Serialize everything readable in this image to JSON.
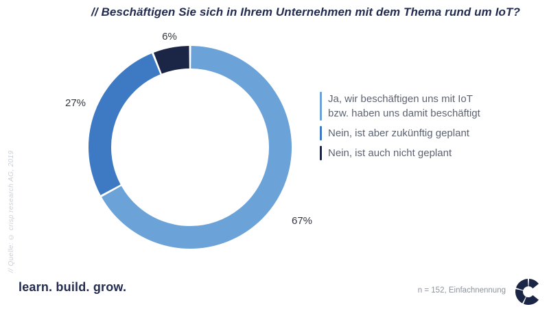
{
  "title": "// Beschäftigen Sie sich in Ihrem Unternehmen mit dem Thema rund um IoT?",
  "chart_data": {
    "type": "pie",
    "subtype": "donut",
    "title": "// Beschäftigen Sie sich in Ihrem Unternehmen mit dem Thema rund um IoT?",
    "categories": [
      "Ja, wir beschäftigen uns mit IoT bzw. haben uns damit beschäftigt",
      "Nein, ist aber zukünftig geplant",
      "Nein, ist auch nicht geplant"
    ],
    "values": [
      67,
      27,
      6
    ],
    "unit": "%",
    "labels": [
      "67%",
      "27%",
      "6%"
    ],
    "colors": [
      "#6BA3D9",
      "#3E7AC3",
      "#1B2546"
    ],
    "start_angle_deg": 0,
    "direction": "clockwise",
    "legend_position": "right",
    "grid": false
  },
  "legend": {
    "items": [
      {
        "label": "Ja, wir beschäftigen uns mit IoT\nbzw. haben uns damit beschäftigt",
        "color": "#6BA3D9"
      },
      {
        "label": "Nein, ist aber zukünftig geplant",
        "color": "#3E7AC3"
      },
      {
        "label": "Nein, ist auch nicht geplant",
        "color": "#1B2546"
      }
    ]
  },
  "source_note": "// Quelle: © crisp research AG, 2019",
  "footer": {
    "tagline": "learn. build. grow.",
    "sample_note": "n = 152, Einfachnennung"
  },
  "logo": {
    "name": "crisp-research-c-logo",
    "color": "#1B2546"
  },
  "colors": {
    "title": "#232B4E",
    "legend_text": "#5C6370",
    "percent_labels": "#32363E",
    "source_note": "#CBCFD6",
    "background": "#FFFFFF"
  }
}
